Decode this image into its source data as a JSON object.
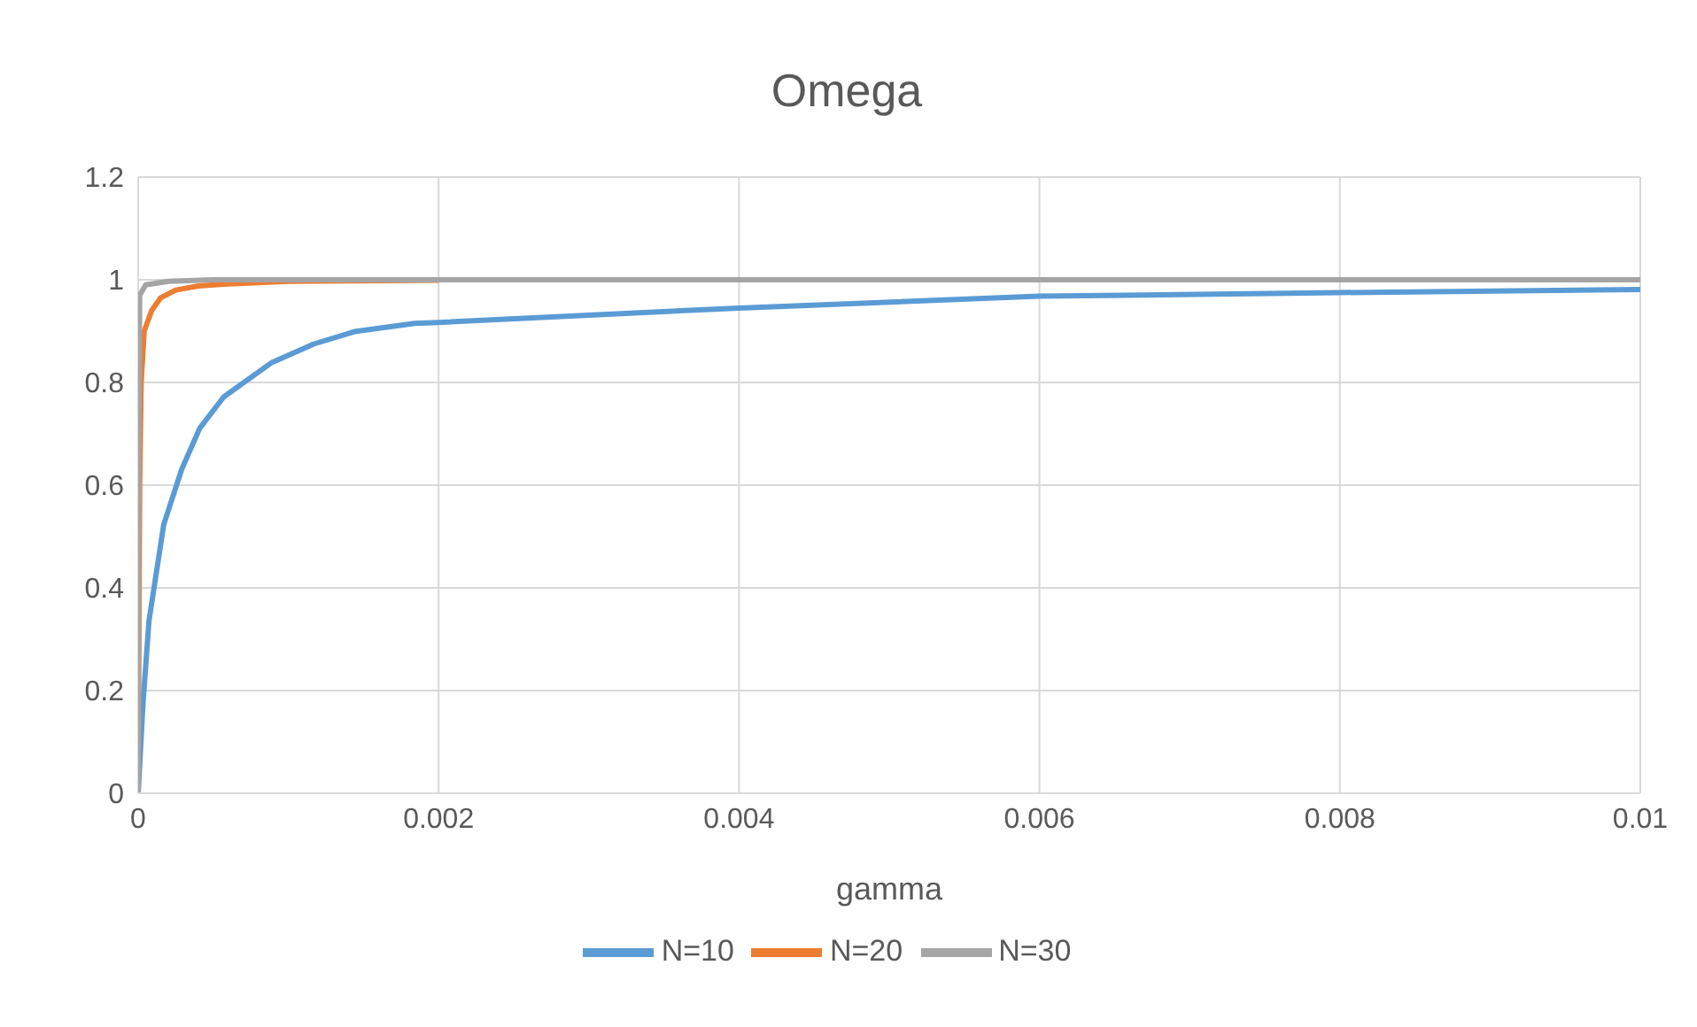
{
  "chart_data": {
    "type": "line",
    "title": "Omega",
    "xlabel": "gamma",
    "xlim": [
      0,
      0.01
    ],
    "xticks": [
      0,
      0.002,
      0.004,
      0.006,
      0.008,
      0.01
    ],
    "ylim": [
      0,
      1.2
    ],
    "yticks": [
      0,
      0.2,
      0.4,
      0.6,
      0.8,
      1,
      1.2
    ],
    "grid": true,
    "legend": "bottom",
    "marker": "none",
    "line_style": "solid",
    "series": [
      {
        "name": "N=10",
        "color": "#5b9bd5",
        "x": [
          0,
          3.2e-05,
          7.2e-05,
          0.00017,
          0.00029,
          0.00041,
          0.00057,
          0.00089,
          0.00117,
          0.00144,
          0.00184,
          0.002,
          0.004,
          0.006,
          0.008,
          0.01
        ],
        "values": [
          0,
          0.174,
          0.336,
          0.523,
          0.631,
          0.711,
          0.772,
          0.839,
          0.875,
          0.899,
          0.915,
          0.917,
          0.945,
          0.968,
          0.975,
          0.981
        ]
      },
      {
        "name": "N=20",
        "color": "#ed7d31",
        "x": [
          0,
          1e-05,
          2e-05,
          4e-05,
          9e-05,
          0.00015,
          0.00025,
          0.0004,
          0.0006,
          0.001,
          0.002
        ],
        "values": [
          0,
          0.6,
          0.8,
          0.9,
          0.94,
          0.965,
          0.98,
          0.988,
          0.992,
          0.997,
          0.999
        ]
      },
      {
        "name": "N=30",
        "color": "#a5a5a5",
        "x": [
          0,
          3e-06,
          1e-05,
          5e-05,
          0.0002,
          0.0005,
          0.01
        ],
        "values": [
          0,
          0.6,
          0.97,
          0.99,
          0.997,
          1,
          1
        ]
      }
    ]
  }
}
